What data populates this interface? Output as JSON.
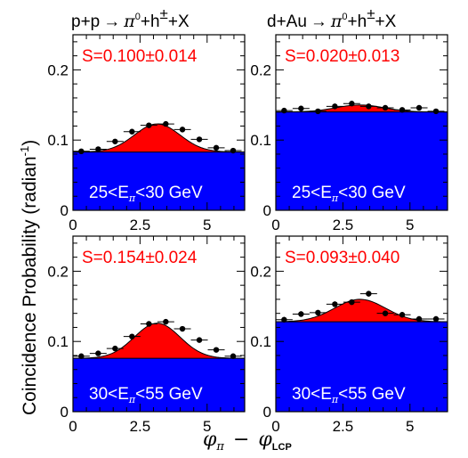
{
  "figure": {
    "ylabel": "Coincidence Probability (radian",
    "ylabel_exp": "-1",
    "ylabel_close": ")",
    "xlabel_phi1": "φ",
    "xlabel_sub1": "π",
    "xlabel_minus": "−",
    "xlabel_phi2": "φ",
    "xlabel_sub2": "LCP",
    "columns": [
      {
        "left": "p+p",
        "pi": "π",
        "pi_sup": "0",
        "plus": "+h",
        "h_sup": "±",
        "tail": "+X"
      },
      {
        "left": "d+Au",
        "pi": "π",
        "pi_sup": "0",
        "plus": "+h",
        "h_sup": "±",
        "tail": "+X"
      }
    ],
    "colors": {
      "signal_fill": "#ff0000",
      "pedestal_fill": "#0000ff",
      "text_signal": "#ff0000",
      "text_bin": "#ffffff"
    }
  },
  "chart_data": [
    {
      "type": "scatter",
      "panel": "top-left",
      "signal_text": "S=0.100±0.014",
      "bin_text": {
        "lo": "25<E",
        "sub": "π",
        "hi": "<30 GeV"
      },
      "pedestal": 0.083,
      "x": [
        0.31,
        0.94,
        1.57,
        2.2,
        2.83,
        3.46,
        4.08,
        4.71,
        5.34,
        5.97
      ],
      "y": [
        0.084,
        0.087,
        0.098,
        0.112,
        0.121,
        0.123,
        0.115,
        0.101,
        0.089,
        0.085
      ],
      "yerr": 0.002,
      "fit": {
        "pedestal": 0.083,
        "amplitude": 0.04,
        "mean": 3.14,
        "sigma": 0.85
      },
      "xlim": [
        0,
        6.4
      ],
      "ylim": [
        0,
        0.25
      ],
      "xticks": [
        "0",
        "2.5",
        "5"
      ],
      "yticks": [
        "0",
        "0.1",
        "0.2"
      ]
    },
    {
      "type": "scatter",
      "panel": "top-right",
      "signal_text": "S=0.020±0.013",
      "bin_text": {
        "lo": "25<E",
        "sub": "π",
        "hi": "<30 GeV"
      },
      "pedestal": 0.14,
      "x": [
        0.31,
        0.94,
        1.57,
        2.2,
        2.83,
        3.46,
        4.08,
        4.71,
        5.34,
        5.97
      ],
      "y": [
        0.142,
        0.145,
        0.141,
        0.148,
        0.152,
        0.148,
        0.146,
        0.143,
        0.146,
        0.141
      ],
      "yerr": 0.003,
      "fit": {
        "pedestal": 0.14,
        "amplitude": 0.01,
        "mean": 3.14,
        "sigma": 0.9
      },
      "xlim": [
        0,
        6.4
      ],
      "ylim": [
        0,
        0.25
      ],
      "xticks": [
        "0",
        "2.5",
        "5"
      ],
      "yticks": [
        "0",
        "0.1",
        "0.2"
      ]
    },
    {
      "type": "scatter",
      "panel": "bottom-left",
      "signal_text": "S=0.154±0.024",
      "bin_text": {
        "lo": "30<E",
        "sub": "π",
        "hi": "<55 GeV"
      },
      "pedestal": 0.076,
      "x": [
        0.31,
        0.94,
        1.57,
        2.2,
        2.83,
        3.46,
        4.08,
        4.71,
        5.34,
        5.97
      ],
      "y": [
        0.079,
        0.083,
        0.09,
        0.107,
        0.125,
        0.128,
        0.118,
        0.102,
        0.088,
        0.079
      ],
      "yerr": 0.002,
      "fit": {
        "pedestal": 0.076,
        "amplitude": 0.05,
        "mean": 3.14,
        "sigma": 0.85
      },
      "xlim": [
        0,
        6.4
      ],
      "ylim": [
        0,
        0.25
      ],
      "xticks": [
        "0",
        "2.5",
        "5"
      ],
      "yticks": [
        "0",
        "0.1",
        "0.2"
      ]
    },
    {
      "type": "scatter",
      "panel": "bottom-right",
      "signal_text": "S=0.093±0.040",
      "bin_text": {
        "lo": "30<E",
        "sub": "π",
        "hi": "<55 GeV"
      },
      "pedestal": 0.128,
      "x": [
        0.31,
        0.94,
        1.57,
        2.2,
        2.83,
        3.46,
        4.08,
        4.71,
        5.34,
        5.97
      ],
      "y": [
        0.131,
        0.139,
        0.141,
        0.153,
        0.156,
        0.168,
        0.14,
        0.138,
        0.132,
        0.132
      ],
      "yerr": 0.004,
      "fit": {
        "pedestal": 0.128,
        "amplitude": 0.032,
        "mean": 3.14,
        "sigma": 0.95
      },
      "xlim": [
        0,
        6.4
      ],
      "ylim": [
        0,
        0.25
      ],
      "xticks": [
        "0",
        "2.5",
        "5"
      ],
      "yticks": [
        "0",
        "0.1",
        "0.2"
      ]
    }
  ]
}
